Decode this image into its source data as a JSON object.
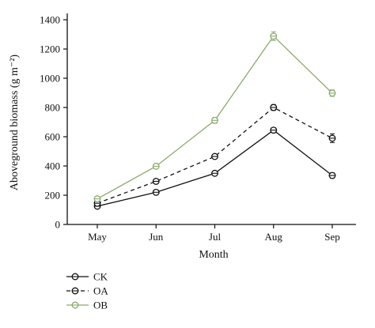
{
  "chart_data": {
    "type": "line",
    "xlabel": "Month",
    "ylabel": "Aboveground biomass (g m⁻²)",
    "categories": [
      "May",
      "Jun",
      "Jul",
      "Aug",
      "Sep"
    ],
    "ylim": [
      0,
      1400
    ],
    "yticks": [
      0,
      200,
      400,
      600,
      800,
      1000,
      1200,
      1400
    ],
    "grid": false,
    "legend_position": "bottom-left",
    "series": [
      {
        "name": "CK",
        "color": "#111111",
        "line_style": "solid",
        "values": [
          125,
          220,
          350,
          645,
          335
        ],
        "errors": [
          10,
          10,
          12,
          15,
          18
        ]
      },
      {
        "name": "OA",
        "color": "#111111",
        "line_style": "dashed",
        "values": [
          145,
          295,
          465,
          800,
          590
        ],
        "errors": [
          10,
          10,
          12,
          20,
          30
        ]
      },
      {
        "name": "OB",
        "color": "#8aab6a",
        "line_style": "solid",
        "values": [
          175,
          398,
          712,
          1288,
          898
        ],
        "errors": [
          15,
          15,
          20,
          30,
          22
        ]
      }
    ]
  }
}
